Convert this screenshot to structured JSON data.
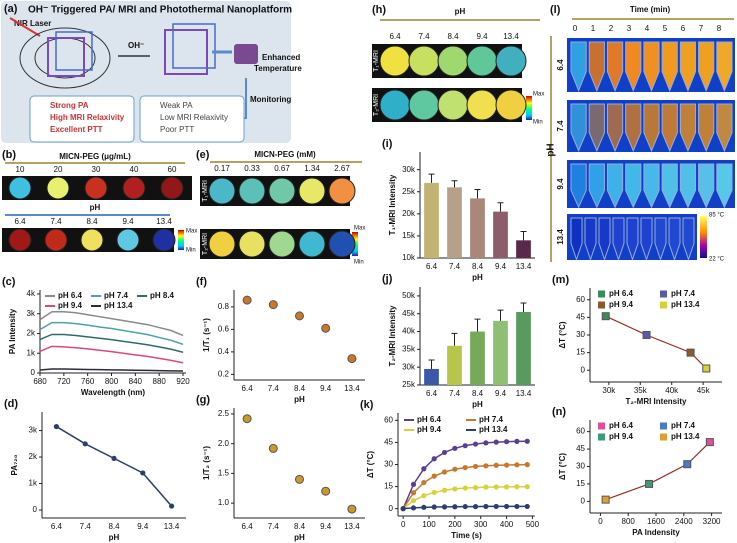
{
  "figure": {
    "panel_a": {
      "label": "(a)",
      "title": "OH⁻ Triggered PA/ MRI and Photothermal Nanoplatform",
      "laser": "NIR Laser",
      "trigger": "OH⁻",
      "enhanced": [
        "Enhanced",
        "Temperature"
      ],
      "monitoring": "Monitoring",
      "strong": [
        "Strong PA",
        "High MRI Relaxivity",
        "Excellent PTT"
      ],
      "weak": [
        "Weak PA",
        "Low MRI Relaxivity",
        "Poor PTT"
      ]
    },
    "panel_b": {
      "label": "(b)",
      "conc_title": "MICN-PEG (μg/mL)",
      "concentrations": [
        "10",
        "20",
        "30",
        "40",
        "60"
      ],
      "ph_title": "pH",
      "ph": [
        "6.4",
        "7.4",
        "8.4",
        "9.4",
        "13.4"
      ],
      "max": "Max",
      "min": "Min"
    },
    "panel_e": {
      "label": "(e)",
      "title": "MICN-PEG (mM)",
      "concentrations": [
        "0.17",
        "0.33",
        "0.67",
        "1.34",
        "2.67"
      ],
      "rows": [
        "T₁-MRI",
        "T₂-MRI"
      ],
      "max": "Max",
      "min": "Min"
    },
    "panel_h": {
      "label": "(h)",
      "title": "pH",
      "ph": [
        "6.4",
        "7.4",
        "8.4",
        "9.4",
        "13.4"
      ],
      "rows": [
        "T₁-MRI",
        "T₂-MRI"
      ],
      "max": "Max",
      "min": "Min"
    },
    "panel_l": {
      "label": "(l)",
      "title": "Time (min)",
      "times": [
        "0",
        "1",
        "2",
        "3",
        "4",
        "5",
        "6",
        "7",
        "8"
      ],
      "ph_title": "pH",
      "ph": [
        "6.4",
        "7.4",
        "9.4",
        "13.4"
      ],
      "max": "85 °C",
      "min": "22 °C"
    }
  },
  "chart_data": [
    {
      "type": "line",
      "label": "(c)",
      "x_label": "Wavelength (nm)",
      "y_label": "PA Intensity",
      "x": [
        680,
        700,
        720,
        740,
        760,
        780,
        800,
        820,
        840,
        860,
        880,
        900,
        920
      ],
      "xlim": [
        680,
        925
      ],
      "xticks": [
        680,
        720,
        760,
        800,
        840,
        880,
        920
      ],
      "ylim": [
        0,
        4200
      ],
      "yticks": [
        0,
        {
          "value": 1000,
          "label": "1k"
        },
        {
          "value": 2000,
          "label": "2k"
        },
        {
          "value": 3000,
          "label": "3k"
        },
        {
          "value": 4000,
          "label": "4k"
        }
      ],
      "series": [
        {
          "name": "pH 6.4",
          "color": "#8a8a8a",
          "values": [
            2700,
            3100,
            3100,
            3050,
            2950,
            2850,
            2750,
            2650,
            2550,
            2450,
            2300,
            2150,
            1900
          ]
        },
        {
          "name": "pH 7.4",
          "color": "#4aa3a8",
          "values": [
            2200,
            2550,
            2550,
            2500,
            2420,
            2330,
            2250,
            2150,
            2050,
            1950,
            1800,
            1650,
            1450
          ]
        },
        {
          "name": "pH 8.4",
          "color": "#2f6b6b",
          "values": [
            1700,
            1950,
            1950,
            1900,
            1830,
            1760,
            1690,
            1600,
            1520,
            1430,
            1320,
            1200,
            1050
          ]
        },
        {
          "name": "pH 9.4",
          "color": "#e0457b",
          "values": [
            1100,
            1350,
            1320,
            1280,
            1220,
            1150,
            1080,
            1000,
            920,
            840,
            740,
            640,
            520
          ]
        },
        {
          "name": "pH 13.4",
          "color": "#2b2b3b",
          "values": [
            150,
            200,
            200,
            190,
            180,
            170,
            160,
            150,
            140,
            130,
            120,
            110,
            100
          ]
        }
      ]
    },
    {
      "type": "line",
      "label": "(d)",
      "x_label": "pH",
      "y_label": "PA₇₂₀",
      "categories": [
        "6.4",
        "7.4",
        "8.4",
        "9.4",
        "13.4"
      ],
      "values": [
        3150,
        2500,
        1950,
        1400,
        150
      ],
      "color": "#2c3e6b",
      "ylim": [
        -300,
        3700
      ],
      "yticks": [
        0,
        {
          "value": 1000,
          "label": "1k"
        },
        {
          "value": 2000,
          "label": "2k"
        },
        {
          "value": 3000,
          "label": "3k"
        }
      ]
    },
    {
      "type": "scatter",
      "label": "(f)",
      "x_label": "pH",
      "y_label": "1/T₁ (s⁻¹)",
      "categories": [
        "6.4",
        "7.4",
        "8.4",
        "9.4",
        "13.4"
      ],
      "values": [
        0.86,
        0.82,
        0.72,
        0.61,
        0.34
      ],
      "color": "#c8782a",
      "ylim": [
        0.15,
        0.95
      ],
      "yticks": [
        0.2,
        0.4,
        0.6,
        0.8
      ]
    },
    {
      "type": "scatter",
      "label": "(g)",
      "x_label": "pH",
      "y_label": "1/T₂ (s⁻¹)",
      "categories": [
        "6.4",
        "7.4",
        "8.4",
        "9.4",
        "13.4"
      ],
      "values": [
        2.42,
        1.92,
        1.4,
        1.2,
        0.9
      ],
      "color": "#c89a2a",
      "ylim": [
        0.75,
        2.6
      ],
      "yticks": [
        {
          "value": 1,
          "label": "1.0"
        },
        1.5,
        {
          "value": 2,
          "label": "2.0"
        },
        2.5
      ]
    },
    {
      "type": "bar",
      "label": "(i)",
      "x_label": "pH",
      "y_label": "T₁-MRI Intensity",
      "categories": [
        "6.4",
        "7.4",
        "8.4",
        "9.4",
        "13.4"
      ],
      "values": [
        27000,
        26000,
        23500,
        20500,
        14000
      ],
      "errors": [
        2000,
        1500,
        2000,
        2000,
        2000
      ],
      "colors": [
        "#c2b274",
        "#b6a08a",
        "#a9877a",
        "#8c5e6c",
        "#5a2848"
      ],
      "ylim": [
        10000,
        34000
      ],
      "yticks": [
        {
          "value": 10000,
          "label": "10k"
        },
        {
          "value": 15000,
          "label": "15k"
        },
        {
          "value": 20000,
          "label": "20k"
        },
        {
          "value": 25000,
          "label": "25k"
        },
        {
          "value": 30000,
          "label": "30k"
        }
      ]
    },
    {
      "type": "bar",
      "label": "(j)",
      "x_label": "pH",
      "y_label": "T₂-MRI Intensity",
      "categories": [
        "6.4",
        "7.4",
        "8.4",
        "9.4",
        "13.4"
      ],
      "values": [
        29500,
        36000,
        40000,
        43000,
        45500
      ],
      "errors": [
        2500,
        3500,
        3500,
        3000,
        2500
      ],
      "colors": [
        "#3b58a8",
        "#b7c64a",
        "#78a85a",
        "#8fbf73",
        "#5a9a60"
      ],
      "ylim": [
        25000,
        52500
      ],
      "yticks": [
        {
          "value": 25000,
          "label": "25k"
        },
        {
          "value": 30000,
          "label": "30k"
        },
        {
          "value": 35000,
          "label": "35k"
        },
        {
          "value": 40000,
          "label": "40k"
        },
        {
          "value": 45000,
          "label": "45k"
        },
        {
          "value": 50000,
          "label": "50k"
        }
      ]
    },
    {
      "type": "line",
      "label": "(k)",
      "x_label": "Time (s)",
      "y_label": "ΔT (°C)",
      "markers": true,
      "x": [
        0,
        40,
        80,
        120,
        160,
        200,
        240,
        280,
        320,
        360,
        400,
        440,
        480
      ],
      "xlim": [
        -20,
        510
      ],
      "xticks": [
        0,
        100,
        200,
        300,
        400,
        500
      ],
      "ylim": [
        -5,
        65
      ],
      "yticks": [
        0,
        15,
        30,
        45,
        60
      ],
      "series": [
        {
          "name": "pH 6.4",
          "color": "#5b3f8f",
          "values": [
            0,
            16.5,
            27.1,
            33.9,
            38.2,
            41.0,
            42.8,
            43.9,
            44.7,
            45.2,
            45.5,
            45.7,
            45.8
          ]
        },
        {
          "name": "pH 7.4",
          "color": "#c8782a",
          "values": [
            0,
            10.8,
            17.7,
            22.1,
            24.9,
            26.8,
            27.9,
            28.7,
            29.1,
            29.5,
            29.6,
            29.8,
            29.9
          ]
        },
        {
          "name": "pH 9.4",
          "color": "#d4d43a",
          "values": [
            0,
            5.4,
            8.8,
            11.0,
            12.5,
            13.4,
            14.0,
            14.3,
            14.6,
            14.7,
            14.8,
            14.9,
            14.9
          ]
        },
        {
          "name": "pH 13.4",
          "color": "#2c3e6b",
          "values": [
            0,
            0.5,
            0.9,
            1.1,
            1.2,
            1.3,
            1.4,
            1.4,
            1.5,
            1.5,
            1.5,
            1.5,
            1.5
          ]
        }
      ]
    },
    {
      "type": "scatter",
      "label": "(m)",
      "x_label": "T₂-MRI Intensity",
      "y_label": "ΔT (°C)",
      "trend_color": "#9a2a2a",
      "xlim": [
        27000,
        48000
      ],
      "xticks": [
        {
          "value": 30000,
          "label": "30k"
        },
        {
          "value": 35000,
          "label": "35k"
        },
        {
          "value": 40000,
          "label": "40k"
        },
        {
          "value": 45000,
          "label": "45k"
        }
      ],
      "ylim": [
        -10,
        70
      ],
      "yticks": [
        0,
        15,
        30,
        45,
        60
      ],
      "series": [
        {
          "name": "pH 6.4",
          "color": "#3a8a5a",
          "x": [
            29500
          ],
          "values": [
            46
          ]
        },
        {
          "name": "pH 7.4",
          "color": "#5a5aa8",
          "x": [
            36000
          ],
          "values": [
            30
          ]
        },
        {
          "name": "pH 9.4",
          "color": "#8a5a2a",
          "x": [
            43000
          ],
          "values": [
            15
          ]
        },
        {
          "name": "pH 13.4",
          "color": "#d8d03a",
          "x": [
            45500
          ],
          "values": [
            1.5
          ]
        }
      ]
    },
    {
      "type": "scatter",
      "label": "(n)",
      "x_label": "PA Indensity",
      "y_label": "ΔT (°C)",
      "trend_color": "#9a2a2a",
      "xlim": [
        -300,
        3500
      ],
      "xticks": [
        0,
        800,
        1600,
        2400,
        3200
      ],
      "ylim": [
        -10,
        70
      ],
      "yticks": [
        0,
        15,
        30,
        45,
        60
      ],
      "series": [
        {
          "name": "pH 6.4",
          "color": "#e0509a",
          "x": [
            3150
          ],
          "values": [
            51
          ]
        },
        {
          "name": "pH 7.4",
          "color": "#4a7ac8",
          "x": [
            2500
          ],
          "values": [
            32
          ]
        },
        {
          "name": "pH 9.4",
          "color": "#3a9a7a",
          "x": [
            1400
          ],
          "values": [
            15
          ]
        },
        {
          "name": "pH 13.4",
          "color": "#e0a030",
          "x": [
            150
          ],
          "values": [
            1.5
          ]
        }
      ]
    }
  ]
}
